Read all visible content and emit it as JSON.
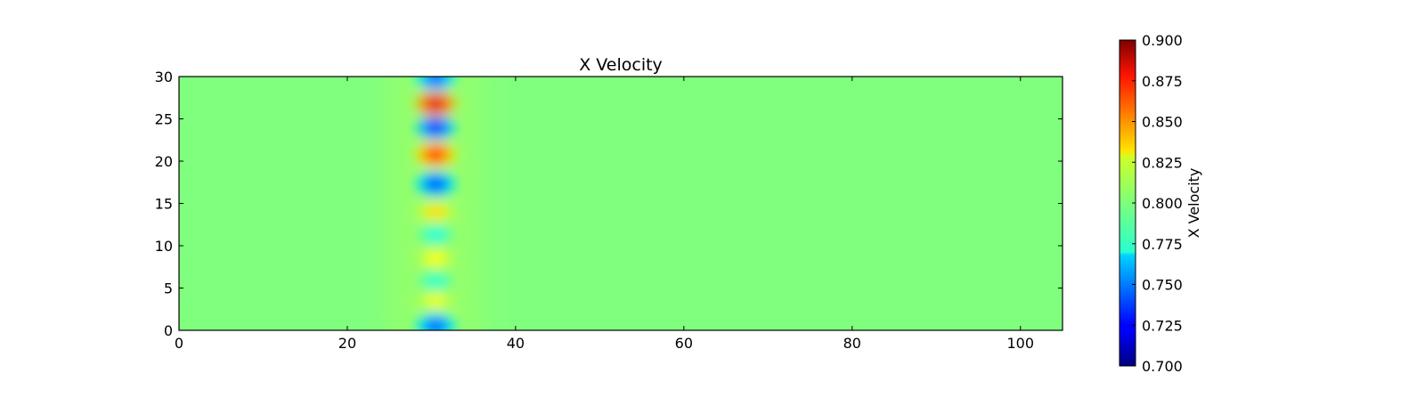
{
  "chart_data": {
    "type": "heatmap",
    "title": "X Velocity",
    "xlabel": "",
    "ylabel": "",
    "xlim": [
      0,
      105
    ],
    "ylim": [
      0,
      30
    ],
    "x_ticks": [
      0,
      20,
      40,
      60,
      80,
      100
    ],
    "y_ticks": [
      0,
      5,
      10,
      15,
      20,
      25,
      30
    ],
    "colormap": "jet",
    "background_value": 0.8,
    "field": {
      "description_column_x": 30.5,
      "blobs": [
        {
          "x": 30.5,
          "y": 0.5,
          "value": 0.745
        },
        {
          "x": 30.5,
          "y": 3.5,
          "value": 0.822
        },
        {
          "x": 30.5,
          "y": 5.8,
          "value": 0.785
        },
        {
          "x": 30.5,
          "y": 8.5,
          "value": 0.825
        },
        {
          "x": 30.5,
          "y": 11.3,
          "value": 0.782
        },
        {
          "x": 30.5,
          "y": 14.0,
          "value": 0.832
        },
        {
          "x": 30.5,
          "y": 17.3,
          "value": 0.742
        },
        {
          "x": 30.5,
          "y": 20.8,
          "value": 0.862
        },
        {
          "x": 30.5,
          "y": 24.0,
          "value": 0.735
        },
        {
          "x": 30.5,
          "y": 26.8,
          "value": 0.88
        },
        {
          "x": 30.5,
          "y": 29.8,
          "value": 0.745
        }
      ]
    },
    "colorbar": {
      "label": "X Velocity",
      "range": [
        0.7,
        0.9
      ],
      "ticks": [
        "0.700",
        "0.725",
        "0.750",
        "0.775",
        "0.800",
        "0.825",
        "0.850",
        "0.875",
        "0.900"
      ]
    }
  }
}
